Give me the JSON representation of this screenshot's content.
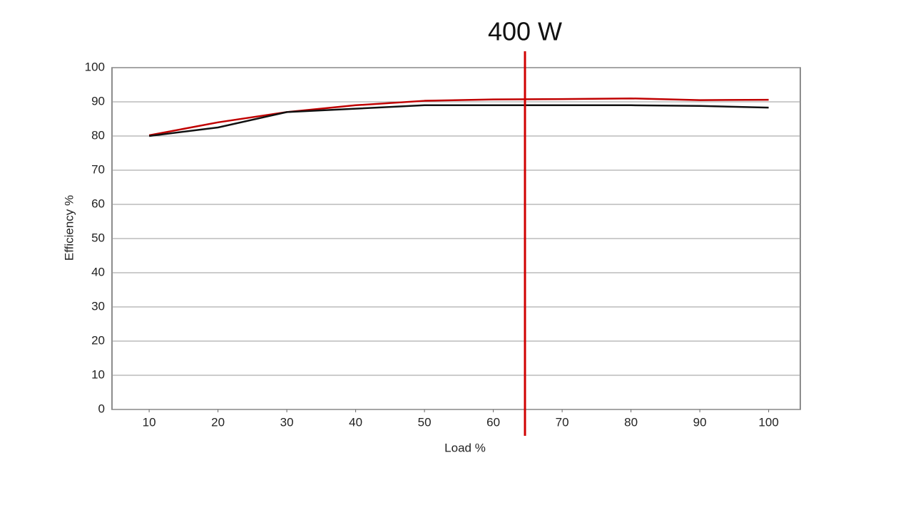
{
  "chart_data": {
    "type": "line",
    "x": [
      10,
      20,
      30,
      40,
      50,
      60,
      70,
      80,
      90,
      100
    ],
    "series": [
      {
        "color": "#c00000",
        "values": [
          80.2,
          84,
          87,
          89,
          90.3,
          90.7,
          90.8,
          91,
          90.5,
          90.6
        ]
      },
      {
        "color": "#111111",
        "values": [
          80,
          82.5,
          87,
          88,
          89,
          89,
          89,
          89,
          88.8,
          88.3
        ]
      }
    ],
    "xlabel": "Load %",
    "ylabel": "Efficiency %",
    "xlim": [
      4.6,
      104.6
    ],
    "xticks": [
      10,
      20,
      30,
      40,
      50,
      60,
      70,
      80,
      90,
      100
    ],
    "ylim": [
      0,
      100
    ],
    "yticks": [
      0,
      10,
      20,
      30,
      40,
      50,
      60,
      70,
      80,
      90,
      100
    ],
    "grid": true,
    "annotations": [
      {
        "text": "400 W",
        "x": 64.6,
        "color": "#d00000"
      }
    ]
  }
}
